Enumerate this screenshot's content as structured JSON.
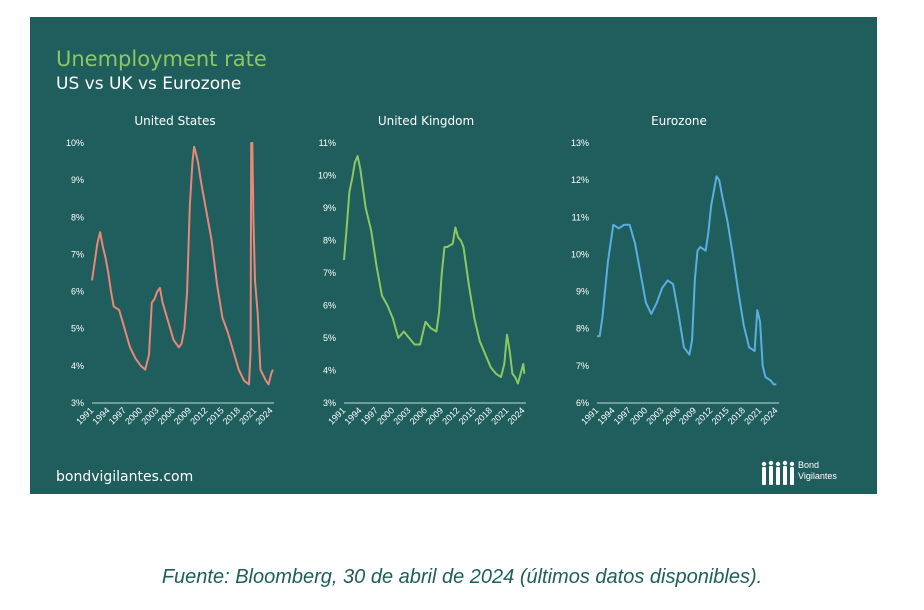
{
  "title": "Unemployment rate",
  "subtitle": "US vs UK vs Eurozone",
  "website": "bondvigilantes.com",
  "logo_text": [
    "Bond",
    "Vigilantes"
  ],
  "source": "Fuente: Bloomberg, 30 de abril de 2024 (últimos datos disponibles).",
  "colors": {
    "background": "#1f5e5c",
    "title": "#8cc862",
    "source": "#1e5f5a"
  },
  "chart_data": [
    {
      "type": "line",
      "title": "United States",
      "color": "#e8877a",
      "ylim": [
        3,
        10
      ],
      "yticks": [
        "10%",
        "9%",
        "8%",
        "7%",
        "6%",
        "5%",
        "4%",
        "3%"
      ],
      "xticks": [
        "1991",
        "1994",
        "1997",
        "2000",
        "2003",
        "2006",
        "2009",
        "2012",
        "2015",
        "2018",
        "2021",
        "2024"
      ],
      "x": [
        1991.0,
        1991.5,
        1992.0,
        1992.5,
        1993.0,
        1993.5,
        1994.0,
        1994.5,
        1995.0,
        1996.0,
        1997.0,
        1998.0,
        1999.0,
        2000.0,
        2000.8,
        2001.5,
        2002.0,
        2002.5,
        2003.0,
        2003.5,
        2004.0,
        2005.0,
        2006.0,
        2007.0,
        2007.5,
        2008.0,
        2008.5,
        2009.0,
        2009.5,
        2009.8,
        2010.0,
        2010.5,
        2011.0,
        2012.0,
        2013.0,
        2014.0,
        2015.0,
        2016.0,
        2017.0,
        2018.0,
        2019.0,
        2019.9,
        2020.2,
        2020.3,
        2020.5,
        2020.7,
        2021.0,
        2021.5,
        2022.0,
        2023.0,
        2023.5,
        2024.0,
        2024.3
      ],
      "y": [
        6.3,
        6.8,
        7.3,
        7.6,
        7.2,
        6.9,
        6.5,
        6.0,
        5.6,
        5.5,
        5.0,
        4.5,
        4.2,
        4.0,
        3.9,
        4.3,
        5.7,
        5.8,
        6.0,
        6.1,
        5.7,
        5.2,
        4.7,
        4.5,
        4.6,
        5.0,
        6.0,
        8.3,
        9.5,
        9.9,
        9.8,
        9.5,
        9.0,
        8.2,
        7.4,
        6.2,
        5.3,
        4.9,
        4.4,
        3.9,
        3.6,
        3.5,
        4.4,
        10.0,
        10.0,
        8.0,
        6.3,
        5.4,
        3.9,
        3.6,
        3.5,
        3.8,
        3.9
      ]
    },
    {
      "type": "line",
      "title": "United Kingdom",
      "color": "#8cc862",
      "ylim": [
        3,
        11
      ],
      "yticks": [
        "11%",
        "10%",
        "9%",
        "8%",
        "7%",
        "6%",
        "5%",
        "4%",
        "3%"
      ],
      "xticks": [
        "1991",
        "1994",
        "1997",
        "2000",
        "2003",
        "2006",
        "2009",
        "2012",
        "2015",
        "2018",
        "2021",
        "2024"
      ],
      "x": [
        1991.0,
        1991.5,
        1992.0,
        1992.5,
        1993.0,
        1993.5,
        1994.0,
        1995.0,
        1996.0,
        1997.0,
        1998.0,
        1999.0,
        2000.0,
        2001.0,
        2002.0,
        2003.0,
        2004.0,
        2005.0,
        2006.0,
        2007.0,
        2008.0,
        2008.5,
        2009.0,
        2009.5,
        2010.0,
        2011.0,
        2011.5,
        2012.0,
        2012.5,
        2013.0,
        2014.0,
        2015.0,
        2016.0,
        2017.0,
        2018.0,
        2019.0,
        2019.9,
        2020.5,
        2021.0,
        2021.5,
        2022.0,
        2022.5,
        2023.0,
        2023.5,
        2024.0,
        2024.2
      ],
      "y": [
        7.4,
        8.4,
        9.5,
        9.9,
        10.4,
        10.6,
        10.2,
        9.0,
        8.3,
        7.2,
        6.3,
        6.0,
        5.6,
        5.0,
        5.2,
        5.0,
        4.8,
        4.8,
        5.5,
        5.3,
        5.2,
        5.8,
        7.0,
        7.8,
        7.8,
        7.9,
        8.4,
        8.1,
        8.0,
        7.8,
        6.6,
        5.6,
        4.9,
        4.5,
        4.1,
        3.9,
        3.8,
        4.2,
        5.1,
        4.6,
        3.9,
        3.8,
        3.6,
        3.9,
        4.2,
        3.9
      ]
    },
    {
      "type": "line",
      "title": "Eurozone",
      "color": "#5aaee0",
      "ylim": [
        6,
        13
      ],
      "yticks": [
        "13%",
        "12%",
        "11%",
        "10%",
        "9%",
        "8%",
        "7%",
        "6%"
      ],
      "xticks": [
        "1991",
        "1994",
        "1997",
        "2000",
        "2003",
        "2006",
        "2009",
        "2012",
        "2015",
        "2018",
        "2021",
        "2024"
      ],
      "x": [
        1991.0,
        1991.5,
        1992.0,
        1993.0,
        1994.0,
        1995.0,
        1996.0,
        1997.0,
        1998.0,
        1999.0,
        2000.0,
        2001.0,
        2002.0,
        2003.0,
        2004.0,
        2005.0,
        2006.0,
        2007.0,
        2008.0,
        2008.5,
        2009.0,
        2009.5,
        2010.0,
        2011.0,
        2011.5,
        2012.0,
        2013.0,
        2013.5,
        2014.0,
        2015.0,
        2016.0,
        2017.0,
        2018.0,
        2019.0,
        2020.0,
        2020.5,
        2021.0,
        2021.5,
        2022.0,
        2023.0,
        2023.5,
        2024.0
      ],
      "y": [
        7.8,
        7.8,
        8.3,
        9.8,
        10.8,
        10.7,
        10.8,
        10.8,
        10.3,
        9.5,
        8.7,
        8.4,
        8.7,
        9.1,
        9.3,
        9.2,
        8.4,
        7.5,
        7.3,
        7.7,
        9.3,
        10.1,
        10.2,
        10.1,
        10.6,
        11.3,
        12.1,
        12.0,
        11.6,
        10.9,
        10.0,
        9.0,
        8.1,
        7.5,
        7.4,
        8.5,
        8.2,
        7.0,
        6.7,
        6.6,
        6.5,
        6.5
      ]
    }
  ]
}
